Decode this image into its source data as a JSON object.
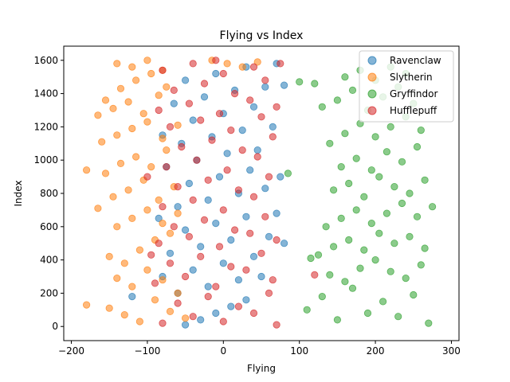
{
  "chart_data": {
    "type": "scatter",
    "title": "Flying vs Index",
    "xlabel": "Flying",
    "ylabel": "Index",
    "xlim": [
      -210,
      310
    ],
    "ylim": [
      -85,
      1685
    ],
    "xticks": [
      -200,
      -100,
      0,
      100,
      200,
      300
    ],
    "yticks": [
      0,
      200,
      400,
      600,
      800,
      1000,
      1200,
      1400,
      1600
    ],
    "xtick_labels": [
      "−200",
      "−100",
      "0",
      "100",
      "200",
      "300"
    ],
    "ytick_labels": [
      "0",
      "200",
      "400",
      "600",
      "800",
      "1000",
      "1200",
      "1400",
      "1600"
    ],
    "grid": false,
    "legend_position": "top-right",
    "series": [
      {
        "name": "Ravenclaw",
        "color": "#1f77b4",
        "points": [
          [
            -50,
            10
          ],
          [
            -30,
            40
          ],
          [
            -10,
            80
          ],
          [
            10,
            120
          ],
          [
            30,
            160
          ],
          [
            -60,
            200
          ],
          [
            -20,
            240
          ],
          [
            20,
            280
          ],
          [
            50,
            300
          ],
          [
            -40,
            340
          ],
          [
            0,
            380
          ],
          [
            40,
            420
          ],
          [
            -70,
            440
          ],
          [
            -30,
            480
          ],
          [
            10,
            520
          ],
          [
            60,
            540
          ],
          [
            -50,
            580
          ],
          [
            -10,
            620
          ],
          [
            30,
            660
          ],
          [
            70,
            680
          ],
          [
            -60,
            720
          ],
          [
            -20,
            760
          ],
          [
            20,
            800
          ],
          [
            55,
            830
          ],
          [
            -45,
            860
          ],
          [
            -5,
            900
          ],
          [
            35,
            940
          ],
          [
            -75,
            960
          ],
          [
            -35,
            1000
          ],
          [
            5,
            1040
          ],
          [
            45,
            1060
          ],
          [
            -55,
            1100
          ],
          [
            -15,
            1140
          ],
          [
            25,
            1180
          ],
          [
            65,
            1200
          ],
          [
            -40,
            1240
          ],
          [
            0,
            1280
          ],
          [
            40,
            1320
          ],
          [
            -65,
            1340
          ],
          [
            -25,
            1380
          ],
          [
            15,
            1420
          ],
          [
            55,
            1440
          ],
          [
            -50,
            1480
          ],
          [
            -10,
            1520
          ],
          [
            30,
            1560
          ],
          [
            70,
            1580
          ],
          [
            -120,
            180
          ],
          [
            -80,
            300
          ],
          [
            80,
            500
          ],
          [
            -85,
            650
          ],
          [
            75,
            900
          ],
          [
            -80,
            1150
          ],
          [
            80,
            1450
          ]
        ]
      },
      {
        "name": "Slytherin",
        "color": "#ff7f0e",
        "points": [
          [
            -180,
            130
          ],
          [
            -150,
            110
          ],
          [
            -130,
            70
          ],
          [
            -110,
            30
          ],
          [
            -90,
            160
          ],
          [
            -70,
            90
          ],
          [
            -50,
            50
          ],
          [
            -140,
            290
          ],
          [
            -120,
            240
          ],
          [
            -100,
            340
          ],
          [
            -80,
            280
          ],
          [
            -60,
            200
          ],
          [
            -150,
            420
          ],
          [
            -130,
            380
          ],
          [
            -110,
            460
          ],
          [
            -90,
            520
          ],
          [
            -70,
            560
          ],
          [
            -140,
            600
          ],
          [
            -120,
            650
          ],
          [
            -100,
            700
          ],
          [
            -80,
            620
          ],
          [
            -60,
            680
          ],
          [
            -165,
            710
          ],
          [
            -145,
            780
          ],
          [
            -125,
            820
          ],
          [
            -105,
            880
          ],
          [
            -85,
            760
          ],
          [
            -65,
            840
          ],
          [
            -180,
            940
          ],
          [
            -155,
            920
          ],
          [
            -135,
            980
          ],
          [
            -115,
            1020
          ],
          [
            -95,
            960
          ],
          [
            -75,
            1060
          ],
          [
            -160,
            1110
          ],
          [
            -140,
            1150
          ],
          [
            -120,
            1190
          ],
          [
            -100,
            1230
          ],
          [
            -80,
            1130
          ],
          [
            -60,
            1210
          ],
          [
            -165,
            1270
          ],
          [
            -145,
            1310
          ],
          [
            -125,
            1350
          ],
          [
            -105,
            1280
          ],
          [
            -85,
            1390
          ],
          [
            -155,
            1360
          ],
          [
            -135,
            1430
          ],
          [
            -115,
            1480
          ],
          [
            -95,
            1520
          ],
          [
            -75,
            1440
          ],
          [
            -140,
            1580
          ],
          [
            -120,
            1560
          ],
          [
            -100,
            1600
          ],
          [
            -80,
            1540
          ],
          [
            45,
            1590
          ],
          [
            25,
            1560
          ],
          [
            5,
            1580
          ],
          [
            -15,
            1600
          ]
        ]
      },
      {
        "name": "Gryffindor",
        "color": "#2ca02c",
        "points": [
          [
            110,
            100
          ],
          [
            130,
            180
          ],
          [
            150,
            40
          ],
          [
            170,
            230
          ],
          [
            190,
            80
          ],
          [
            210,
            150
          ],
          [
            230,
            60
          ],
          [
            250,
            190
          ],
          [
            270,
            20
          ],
          [
            140,
            310
          ],
          [
            160,
            270
          ],
          [
            180,
            350
          ],
          [
            200,
            400
          ],
          [
            220,
            330
          ],
          [
            240,
            290
          ],
          [
            260,
            370
          ],
          [
            125,
            430
          ],
          [
            145,
            480
          ],
          [
            165,
            520
          ],
          [
            185,
            460
          ],
          [
            205,
            560
          ],
          [
            225,
            500
          ],
          [
            245,
            540
          ],
          [
            265,
            470
          ],
          [
            135,
            600
          ],
          [
            155,
            650
          ],
          [
            175,
            700
          ],
          [
            195,
            620
          ],
          [
            215,
            680
          ],
          [
            235,
            740
          ],
          [
            255,
            660
          ],
          [
            275,
            720
          ],
          [
            145,
            820
          ],
          [
            165,
            860
          ],
          [
            185,
            780
          ],
          [
            205,
            900
          ],
          [
            225,
            840
          ],
          [
            245,
            800
          ],
          [
            265,
            880
          ],
          [
            155,
            960
          ],
          [
            175,
            1010
          ],
          [
            195,
            940
          ],
          [
            215,
            1050
          ],
          [
            235,
            990
          ],
          [
            255,
            1080
          ],
          [
            140,
            1100
          ],
          [
            160,
            1160
          ],
          [
            180,
            1220
          ],
          [
            200,
            1140
          ],
          [
            220,
            1200
          ],
          [
            240,
            1260
          ],
          [
            260,
            1180
          ],
          [
            130,
            1320
          ],
          [
            150,
            1360
          ],
          [
            170,
            1420
          ],
          [
            190,
            1300
          ],
          [
            210,
            1380
          ],
          [
            230,
            1440
          ],
          [
            250,
            1340
          ],
          [
            160,
            1500
          ],
          [
            180,
            1540
          ],
          [
            200,
            1480
          ],
          [
            220,
            1560
          ],
          [
            240,
            1520
          ],
          [
            120,
            1460
          ],
          [
            100,
            1470
          ],
          [
            115,
            410
          ],
          [
            85,
            920
          ]
        ]
      },
      {
        "name": "Hufflepuff",
        "color": "#d62728",
        "points": [
          [
            -80,
            20
          ],
          [
            -40,
            60
          ],
          [
            0,
            30
          ],
          [
            40,
            80
          ],
          [
            70,
            10
          ],
          [
            -60,
            140
          ],
          [
            -20,
            180
          ],
          [
            20,
            120
          ],
          [
            60,
            200
          ],
          [
            -90,
            260
          ],
          [
            -50,
            300
          ],
          [
            -10,
            240
          ],
          [
            30,
            340
          ],
          [
            65,
            280
          ],
          [
            -70,
            380
          ],
          [
            -30,
            420
          ],
          [
            10,
            360
          ],
          [
            50,
            440
          ],
          [
            -85,
            500
          ],
          [
            -45,
            540
          ],
          [
            -5,
            480
          ],
          [
            35,
            560
          ],
          [
            70,
            520
          ],
          [
            -65,
            600
          ],
          [
            -25,
            640
          ],
          [
            15,
            580
          ],
          [
            55,
            660
          ],
          [
            -80,
            720
          ],
          [
            -40,
            760
          ],
          [
            0,
            700
          ],
          [
            40,
            780
          ],
          [
            -60,
            840
          ],
          [
            -20,
            880
          ],
          [
            20,
            820
          ],
          [
            60,
            900
          ],
          [
            -75,
            960
          ],
          [
            -35,
            1000
          ],
          [
            5,
            940
          ],
          [
            45,
            1020
          ],
          [
            -55,
            1080
          ],
          [
            -15,
            1120
          ],
          [
            25,
            1060
          ],
          [
            65,
            1140
          ],
          [
            -70,
            1200
          ],
          [
            -30,
            1240
          ],
          [
            10,
            1180
          ],
          [
            50,
            1260
          ],
          [
            -85,
            1300
          ],
          [
            -45,
            1340
          ],
          [
            -5,
            1280
          ],
          [
            35,
            1360
          ],
          [
            70,
            1320
          ],
          [
            -65,
            1420
          ],
          [
            -25,
            1460
          ],
          [
            15,
            1400
          ],
          [
            55,
            1480
          ],
          [
            -80,
            1540
          ],
          [
            -40,
            1580
          ],
          [
            0,
            1520
          ],
          [
            40,
            1560
          ],
          [
            -10,
            1600
          ],
          [
            -100,
            900
          ],
          [
            -95,
            430
          ],
          [
            120,
            310
          ],
          [
            75,
            1580
          ]
        ]
      }
    ]
  }
}
